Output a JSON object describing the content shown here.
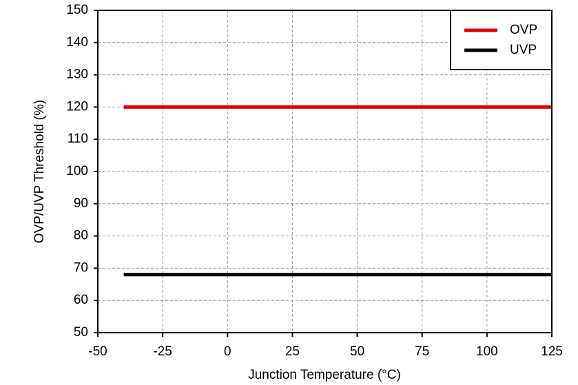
{
  "chart_data": {
    "type": "line",
    "x_label": "Junction Temperature (°C)",
    "y_label": "OVP/UVP Threshold (%)",
    "x": [
      -40,
      125
    ],
    "series": [
      {
        "name": "OVP",
        "color": "#e00000",
        "values": [
          120,
          120
        ]
      },
      {
        "name": "UVP",
        "color": "#000000",
        "values": [
          68,
          68
        ]
      }
    ],
    "xlim": [
      -50,
      125
    ],
    "xticks": [
      -50,
      -25,
      0,
      25,
      50,
      75,
      100,
      125
    ],
    "ylim": [
      50,
      150
    ],
    "yticks": [
      50,
      60,
      70,
      80,
      90,
      100,
      110,
      120,
      130,
      140,
      150
    ],
    "grid": true,
    "legend": "upper right"
  }
}
